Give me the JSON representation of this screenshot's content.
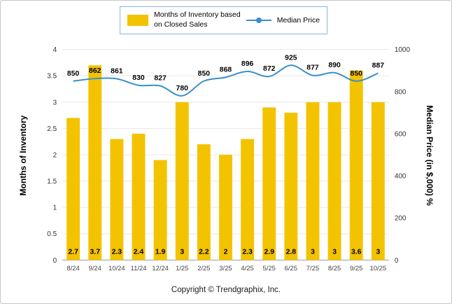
{
  "frame": {
    "footer": "Copyright © Trendgraphix, Inc."
  },
  "legend": {
    "bar_label_line1": "Months of Inventory based",
    "bar_label_line2": "on Closed Sales",
    "line_label": "Median Price"
  },
  "colors": {
    "bar": "#F3C300",
    "line": "#3A8FCB",
    "legend_border": "#8AB6DC",
    "grid": "#E8E8E8",
    "axis_line": "#999999",
    "tick_text": "#333333",
    "label_text": "#000000"
  },
  "chart_data": {
    "type": "bar+line",
    "categories": [
      "8/24",
      "9/24",
      "10/24",
      "11/24",
      "12/24",
      "1/25",
      "2/25",
      "3/25",
      "4/25",
      "5/25",
      "6/25",
      "7/25",
      "8/25",
      "9/25",
      "10/25"
    ],
    "series": [
      {
        "name": "Months of Inventory based on Closed Sales",
        "type": "bar",
        "axis": "left",
        "values": [
          2.7,
          3.7,
          2.3,
          2.4,
          1.9,
          3,
          2.2,
          2,
          2.3,
          2.9,
          2.8,
          3,
          3,
          3.6,
          3
        ]
      },
      {
        "name": "Median Price",
        "type": "line",
        "axis": "right",
        "values": [
          850,
          862,
          861,
          830,
          827,
          780,
          850,
          868,
          896,
          872,
          925,
          877,
          890,
          850,
          887
        ]
      }
    ],
    "left_axis": {
      "title": "Months of Inventory",
      "min": 0,
      "max": 4,
      "ticks": [
        0,
        0.5,
        1,
        1.5,
        2,
        2.5,
        3,
        3.5,
        4
      ]
    },
    "right_axis": {
      "title": "Median Price (in $,000) %",
      "min": 0,
      "max": 1000,
      "ticks": [
        0,
        200,
        400,
        600,
        800,
        1000
      ]
    },
    "grid": true,
    "legend_position": "top-center"
  }
}
